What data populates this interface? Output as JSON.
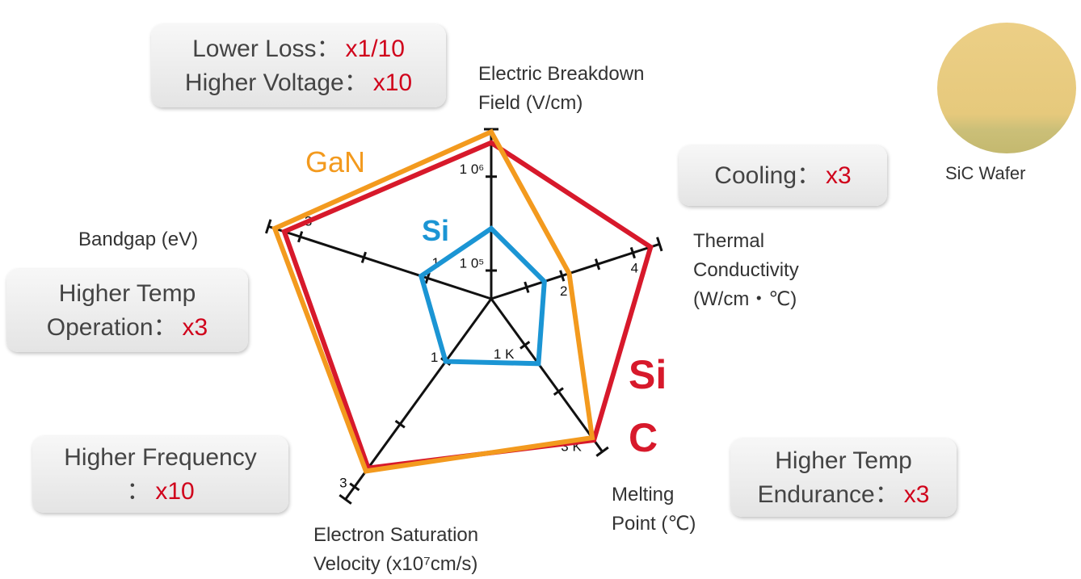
{
  "chart_data": {
    "type": "radar",
    "axes": [
      {
        "label": "Electric Breakdown\nField (V/cm)",
        "log": true,
        "lim": [
          50000,
          3200000
        ],
        "ticks": [
          {
            "value": 100000,
            "label": "1 0⁵"
          },
          {
            "value": 1000000,
            "label": "1 0⁶"
          }
        ]
      },
      {
        "label": "Thermal\nConductivity\n(W/cm・℃)",
        "lim": [
          0,
          4.75
        ],
        "ticks": [
          2,
          4
        ],
        "minor_ticks": [
          1,
          3
        ]
      },
      {
        "label": "Melting\nPoint (℃)",
        "lim": [
          0,
          3300
        ],
        "ticks": [
          {
            "value": 1000,
            "label": "1 K"
          },
          {
            "value": 3000,
            "label": "3 K"
          }
        ],
        "minor_ticks": [
          2000
        ]
      },
      {
        "label": "Electron Saturation\nVelocity (x10⁷cm/s)",
        "lim": [
          0,
          3.2
        ],
        "ticks": [
          1,
          3
        ],
        "minor_ticks": [
          2
        ]
      },
      {
        "label": "Bandgap (eV)",
        "lim": [
          0,
          3.5
        ],
        "ticks": [
          1,
          3
        ],
        "minor_ticks": [
          2
        ]
      }
    ],
    "series": [
      {
        "name": "Si",
        "color": "#1b95d4",
        "values": [
          280000,
          1.5,
          1400,
          1,
          1.1
        ]
      },
      {
        "name": "GaN",
        "color": "#f39a1e",
        "values": [
          3000000,
          2.2,
          3000,
          2.75,
          3.4
        ]
      },
      {
        "name": "SiC",
        "color": "#d7192b",
        "values": [
          2300000,
          4.5,
          3050,
          2.7,
          3.25
        ]
      }
    ]
  },
  "callouts": [
    {
      "lines": [
        {
          "text": "Lower Loss：",
          "highlight": "x1/10"
        },
        {
          "text": "Higher Voltage：",
          "highlight": "x10"
        }
      ]
    },
    {
      "lines": [
        {
          "text": "Cooling：",
          "highlight": "x3"
        }
      ]
    },
    {
      "lines": [
        {
          "text": "Higher Temp"
        },
        {
          "text": "Operation：",
          "highlight": "x3"
        }
      ]
    },
    {
      "lines": [
        {
          "text": "Higher Frequency"
        },
        {
          "text": "：",
          "highlight": "x10"
        }
      ]
    },
    {
      "lines": [
        {
          "text": "Higher Temp"
        },
        {
          "text": "Endurance：",
          "highlight": "x3"
        }
      ]
    }
  ],
  "wafer": {
    "label": "SiC Wafer"
  }
}
